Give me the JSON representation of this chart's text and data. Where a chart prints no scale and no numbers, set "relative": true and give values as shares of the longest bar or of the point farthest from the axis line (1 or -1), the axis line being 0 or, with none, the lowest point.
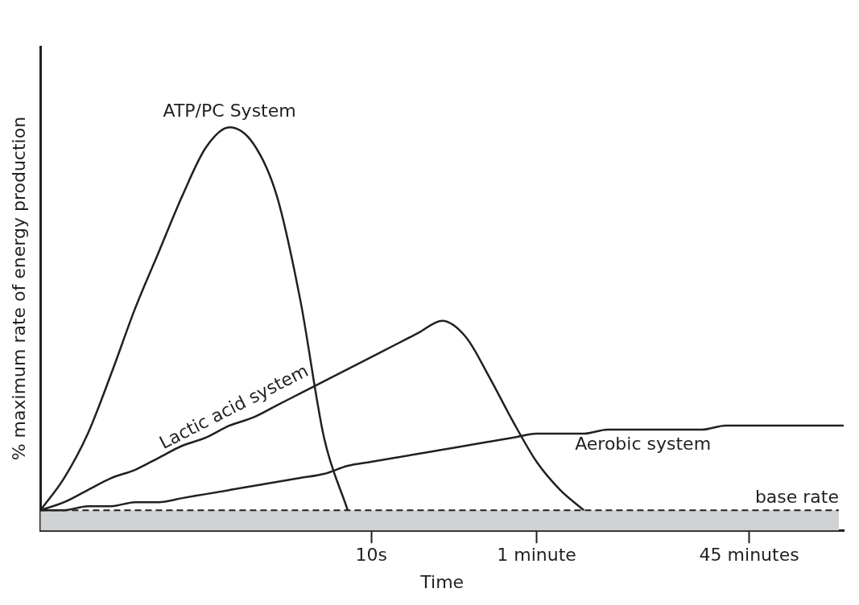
{
  "chart_data": {
    "type": "line",
    "relative": true,
    "xlabel": "Time",
    "ylabel": "% maximum rate of energy production",
    "categories": [
      null,
      null,
      null,
      null,
      null,
      null,
      null,
      null,
      null,
      null,
      null,
      null,
      null,
      null,
      "10s",
      null,
      null,
      null,
      null,
      null,
      null,
      "1 minute",
      null,
      null,
      null,
      null,
      null,
      null,
      null,
      null,
      "45 minutes",
      null,
      null,
      null,
      null
    ],
    "grid": false,
    "legend": false,
    "marker": "none",
    "line_style": "solid",
    "series": [
      {
        "name": "ATP/PC System",
        "color": "#231f20",
        "values": [
          0.05,
          0.13,
          0.24,
          0.39,
          0.55,
          0.69,
          0.83,
          0.95,
          1.0,
          0.96,
          0.83,
          0.57,
          0.23,
          0.05,
          null,
          null,
          null,
          null,
          null,
          null,
          null,
          null,
          null,
          null,
          null,
          null,
          null,
          null,
          null,
          null,
          null,
          null,
          null,
          null,
          null
        ]
      },
      {
        "name": "Lactic acid system",
        "color": "#231f20",
        "values": [
          0.05,
          0.07,
          0.1,
          0.13,
          0.15,
          0.18,
          0.21,
          0.23,
          0.26,
          0.28,
          0.31,
          0.34,
          0.37,
          0.4,
          0.43,
          0.46,
          0.49,
          0.52,
          0.48,
          0.38,
          0.27,
          0.17,
          0.1,
          0.05,
          null,
          null,
          null,
          null,
          null,
          null,
          null,
          null,
          null,
          null,
          null
        ]
      },
      {
        "name": "Aerobic system",
        "color": "#231f20",
        "values": [
          0.05,
          0.05,
          0.06,
          0.06,
          0.07,
          0.07,
          0.08,
          0.09,
          0.1,
          0.11,
          0.12,
          0.13,
          0.14,
          0.16,
          0.17,
          0.18,
          0.19,
          0.2,
          0.21,
          0.22,
          0.23,
          0.24,
          0.24,
          0.24,
          0.25,
          0.25,
          0.25,
          0.25,
          0.25,
          0.26,
          0.26,
          0.26,
          0.26,
          0.26,
          0.26
        ]
      }
    ],
    "ref_lines": [
      {
        "axis": "y",
        "value": 0.05,
        "label": "base rate",
        "color": "#231f20",
        "line_style": "dashed"
      }
    ],
    "bands": [
      {
        "axis": "y",
        "from": 0,
        "to": 0.05,
        "color": "#d1d2d4"
      }
    ]
  }
}
